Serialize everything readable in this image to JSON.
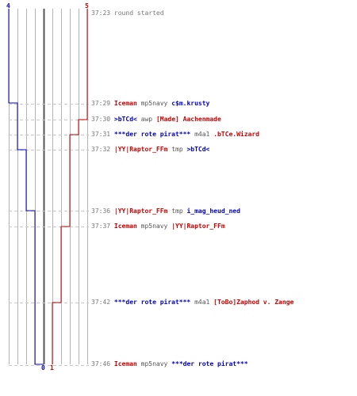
{
  "scores": {
    "blue_start": "4",
    "red_final": "5",
    "blue_final": "0",
    "red_start": "1"
  },
  "colors": {
    "blue": "#0000cc",
    "red": "#cc0000",
    "grid": "#b4b4b4",
    "dash": "#c8c8c8",
    "center": "#555555"
  },
  "events": [
    {
      "time": "37:23",
      "text": "round started"
    },
    {
      "time": "37:29",
      "killer": "Iceman",
      "killer_team": "red",
      "weapon": "mp5navy",
      "victim": "c$m.krusty",
      "victim_team": "blue"
    },
    {
      "time": "37:30",
      "killer": ">bTCd<",
      "killer_team": "blue",
      "weapon": "awp",
      "victim": "[Made] Aachenmade",
      "victim_team": "red"
    },
    {
      "time": "37:31",
      "killer": "***der rote pirat***",
      "killer_team": "blue",
      "weapon": "m4a1",
      "victim": ".bTCe.Wizard",
      "victim_team": "red"
    },
    {
      "time": "37:32",
      "killer": "|YY|Raptor_FFm",
      "killer_team": "red",
      "weapon": "tmp",
      "victim": ">bTCd<",
      "victim_team": "blue"
    },
    {
      "time": "37:36",
      "killer": "|YY|Raptor_FFm",
      "killer_team": "red",
      "weapon": "tmp",
      "victim": "i_mag_heud_ned",
      "victim_team": "blue"
    },
    {
      "time": "37:37",
      "killer": "Iceman",
      "killer_team": "red",
      "weapon": "mp5navy",
      "victim": "|YY|Raptor_FFm",
      "victim_team": "red"
    },
    {
      "time": "37:42",
      "killer": "***der rote pirat***",
      "killer_team": "blue",
      "weapon": "m4a1",
      "victim": "[ToBo]Zaphod v. Zange",
      "victim_team": "red"
    },
    {
      "time": "37:46",
      "killer": "Iceman",
      "killer_team": "red",
      "weapon": "mp5navy",
      "victim": "***der rote pirat***",
      "victim_team": "blue"
    }
  ]
}
